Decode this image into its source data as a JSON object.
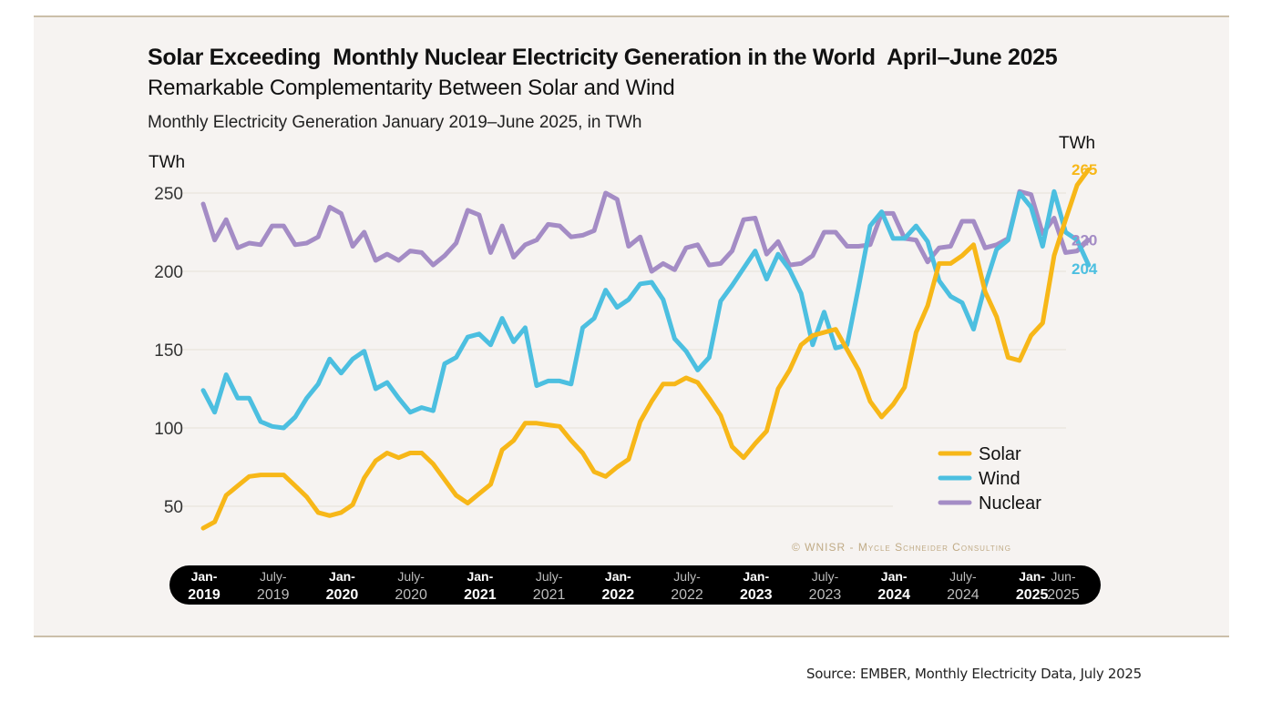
{
  "title": "Solar Exceeding  Monthly Nuclear Electricity Generation in the World  April–June 2025",
  "subtitle": "Remarkable Complementarity Between Solar and Wind",
  "caption": "Monthly Electricity Generation January 2019–June 2025, in TWh",
  "copyright": "© WNISR - Mycle Schneider Consulting",
  "source": "Source: EMBER, Monthly Electricity Data, July 2025",
  "colors": {
    "solar": "#f7b718",
    "wind": "#4cbfe0",
    "nuclear": "#a48cc5",
    "grid": "#e7e0d6",
    "axis_band": "#000000"
  },
  "chart_data": {
    "type": "line",
    "title": "Solar Exceeding  Monthly Nuclear Electricity Generation in the World  April–June 2025",
    "subtitle": "Remarkable Complementarity Between Solar and Wind",
    "ylabel": "TWh",
    "ylabel_right": "TWh",
    "xlabel": "",
    "ylim": [
      30,
      270
    ],
    "yticks": [
      50,
      100,
      150,
      200,
      250
    ],
    "grid": true,
    "legend_position": "bottom-right",
    "x_start": "Jan-2019",
    "x_end": "Jun-2025",
    "xticks": [
      {
        "month_index": 0,
        "line1": "Jan-",
        "line2": "2019",
        "bold": true
      },
      {
        "month_index": 6,
        "line1": "July-",
        "line2": "2019",
        "bold": false
      },
      {
        "month_index": 12,
        "line1": "Jan-",
        "line2": "2020",
        "bold": true
      },
      {
        "month_index": 18,
        "line1": "July-",
        "line2": "2020",
        "bold": false
      },
      {
        "month_index": 24,
        "line1": "Jan-",
        "line2": "2021",
        "bold": true
      },
      {
        "month_index": 30,
        "line1": "July-",
        "line2": "2021",
        "bold": false
      },
      {
        "month_index": 36,
        "line1": "Jan-",
        "line2": "2022",
        "bold": true
      },
      {
        "month_index": 42,
        "line1": "July-",
        "line2": "2022",
        "bold": false
      },
      {
        "month_index": 48,
        "line1": "Jan-",
        "line2": "2023",
        "bold": true
      },
      {
        "month_index": 54,
        "line1": "July-",
        "line2": "2023",
        "bold": false
      },
      {
        "month_index": 60,
        "line1": "Jan-",
        "line2": "2024",
        "bold": true
      },
      {
        "month_index": 66,
        "line1": "July-",
        "line2": "2024",
        "bold": false
      },
      {
        "month_index": 72,
        "line1": "Jan-",
        "line2": "2025",
        "bold": true
      },
      {
        "month_index": 77,
        "line1": "Jun-",
        "line2": "2025",
        "bold": false
      }
    ],
    "series": [
      {
        "name": "Solar",
        "key": "solar",
        "end_label": "265",
        "values": [
          36,
          40,
          57,
          63,
          69,
          70,
          70,
          70,
          63,
          56,
          46,
          44,
          46,
          51,
          68,
          79,
          84,
          81,
          84,
          84,
          77,
          67,
          57,
          52,
          58,
          64,
          86,
          92,
          103,
          103,
          102,
          101,
          92,
          84,
          72,
          69,
          75,
          80,
          104,
          117,
          128,
          128,
          132,
          129,
          119,
          108,
          88,
          81,
          90,
          98,
          125,
          137,
          153,
          159,
          161,
          163,
          150,
          137,
          117,
          107,
          115,
          126,
          161,
          178,
          205,
          205,
          210,
          217,
          187,
          171,
          145,
          143,
          159,
          167,
          210,
          233,
          255,
          265
        ]
      },
      {
        "name": "Wind",
        "key": "wind",
        "end_label": "204",
        "values": [
          124,
          110,
          134,
          119,
          119,
          104,
          101,
          100,
          107,
          119,
          128,
          144,
          135,
          144,
          149,
          125,
          129,
          119,
          110,
          113,
          111,
          141,
          145,
          158,
          160,
          153,
          170,
          155,
          164,
          127,
          130,
          130,
          128,
          164,
          170,
          188,
          177,
          182,
          192,
          193,
          182,
          157,
          149,
          137,
          145,
          181,
          191,
          202,
          213,
          195,
          211,
          201,
          186,
          153,
          174,
          151,
          153,
          190,
          229,
          238,
          221,
          221,
          229,
          219,
          194,
          184,
          180,
          163,
          191,
          214,
          220,
          250,
          241,
          216,
          251,
          225,
          220,
          204
        ]
      },
      {
        "name": "Nuclear",
        "key": "nuclear",
        "end_label": "220",
        "values": [
          243,
          220,
          233,
          215,
          218,
          217,
          229,
          229,
          217,
          218,
          222,
          241,
          237,
          216,
          225,
          207,
          211,
          207,
          213,
          212,
          204,
          210,
          218,
          239,
          236,
          212,
          229,
          209,
          217,
          220,
          230,
          229,
          222,
          223,
          226,
          250,
          246,
          216,
          222,
          200,
          205,
          201,
          215,
          217,
          204,
          205,
          213,
          233,
          234,
          211,
          219,
          204,
          205,
          210,
          225,
          225,
          216,
          216,
          217,
          237,
          237,
          221,
          220,
          206,
          215,
          216,
          232,
          232,
          215,
          217,
          221,
          251,
          249,
          224,
          234,
          212,
          213,
          220
        ]
      }
    ],
    "legend": [
      "Solar",
      "Wind",
      "Nuclear"
    ]
  }
}
